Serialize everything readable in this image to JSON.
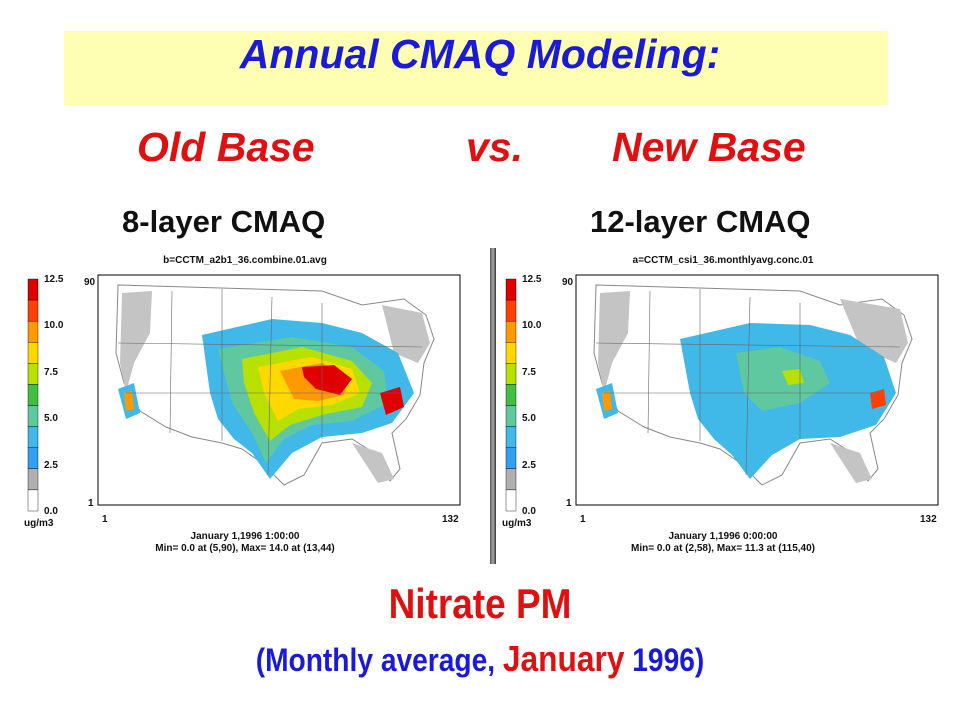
{
  "slide": {
    "title": "Annual CMAQ Modeling:",
    "compare_left": "Old Base",
    "compare_mid": "vs.",
    "compare_right": "New Base",
    "subtitle_main": "Nitrate PM",
    "subtitle_pre": "(Monthly average, ",
    "subtitle_month": "January",
    "subtitle_post": " 1996)"
  },
  "scale": {
    "ticks": [
      "12.5",
      "10.0",
      "7.5",
      "5.0",
      "2.5",
      "0.0"
    ],
    "unit": "ug/m3",
    "colors": [
      "#e00000",
      "#ff4000",
      "#ff9900",
      "#ffd800",
      "#b8e000",
      "#40c040",
      "#60c8a0",
      "#40b8e8",
      "#30a0f0",
      "#b0b0b0",
      "#ffffff"
    ]
  },
  "panels": [
    {
      "layer_label": "8-layer CMAQ",
      "run_label": "b=CCTM_a2b1_36.combine.01.avg",
      "y_top": "90",
      "y_bottom": "1",
      "x_left": "1",
      "x_right": "132",
      "date": "January 1,1996 1:00:00",
      "stats": "Min=   0.0 at (5,90), Max=  14.0 at (13,44)"
    },
    {
      "layer_label": "12-layer CMAQ",
      "run_label": "a=CCTM_csi1_36.monthlyavg.conc.01",
      "y_top": "90",
      "y_bottom": "1",
      "x_left": "1",
      "x_right": "132",
      "date": "January 1,1996 0:00:00",
      "stats": "Min=   0.0 at (2,58), Max=  11.3 at (115,40)"
    }
  ]
}
